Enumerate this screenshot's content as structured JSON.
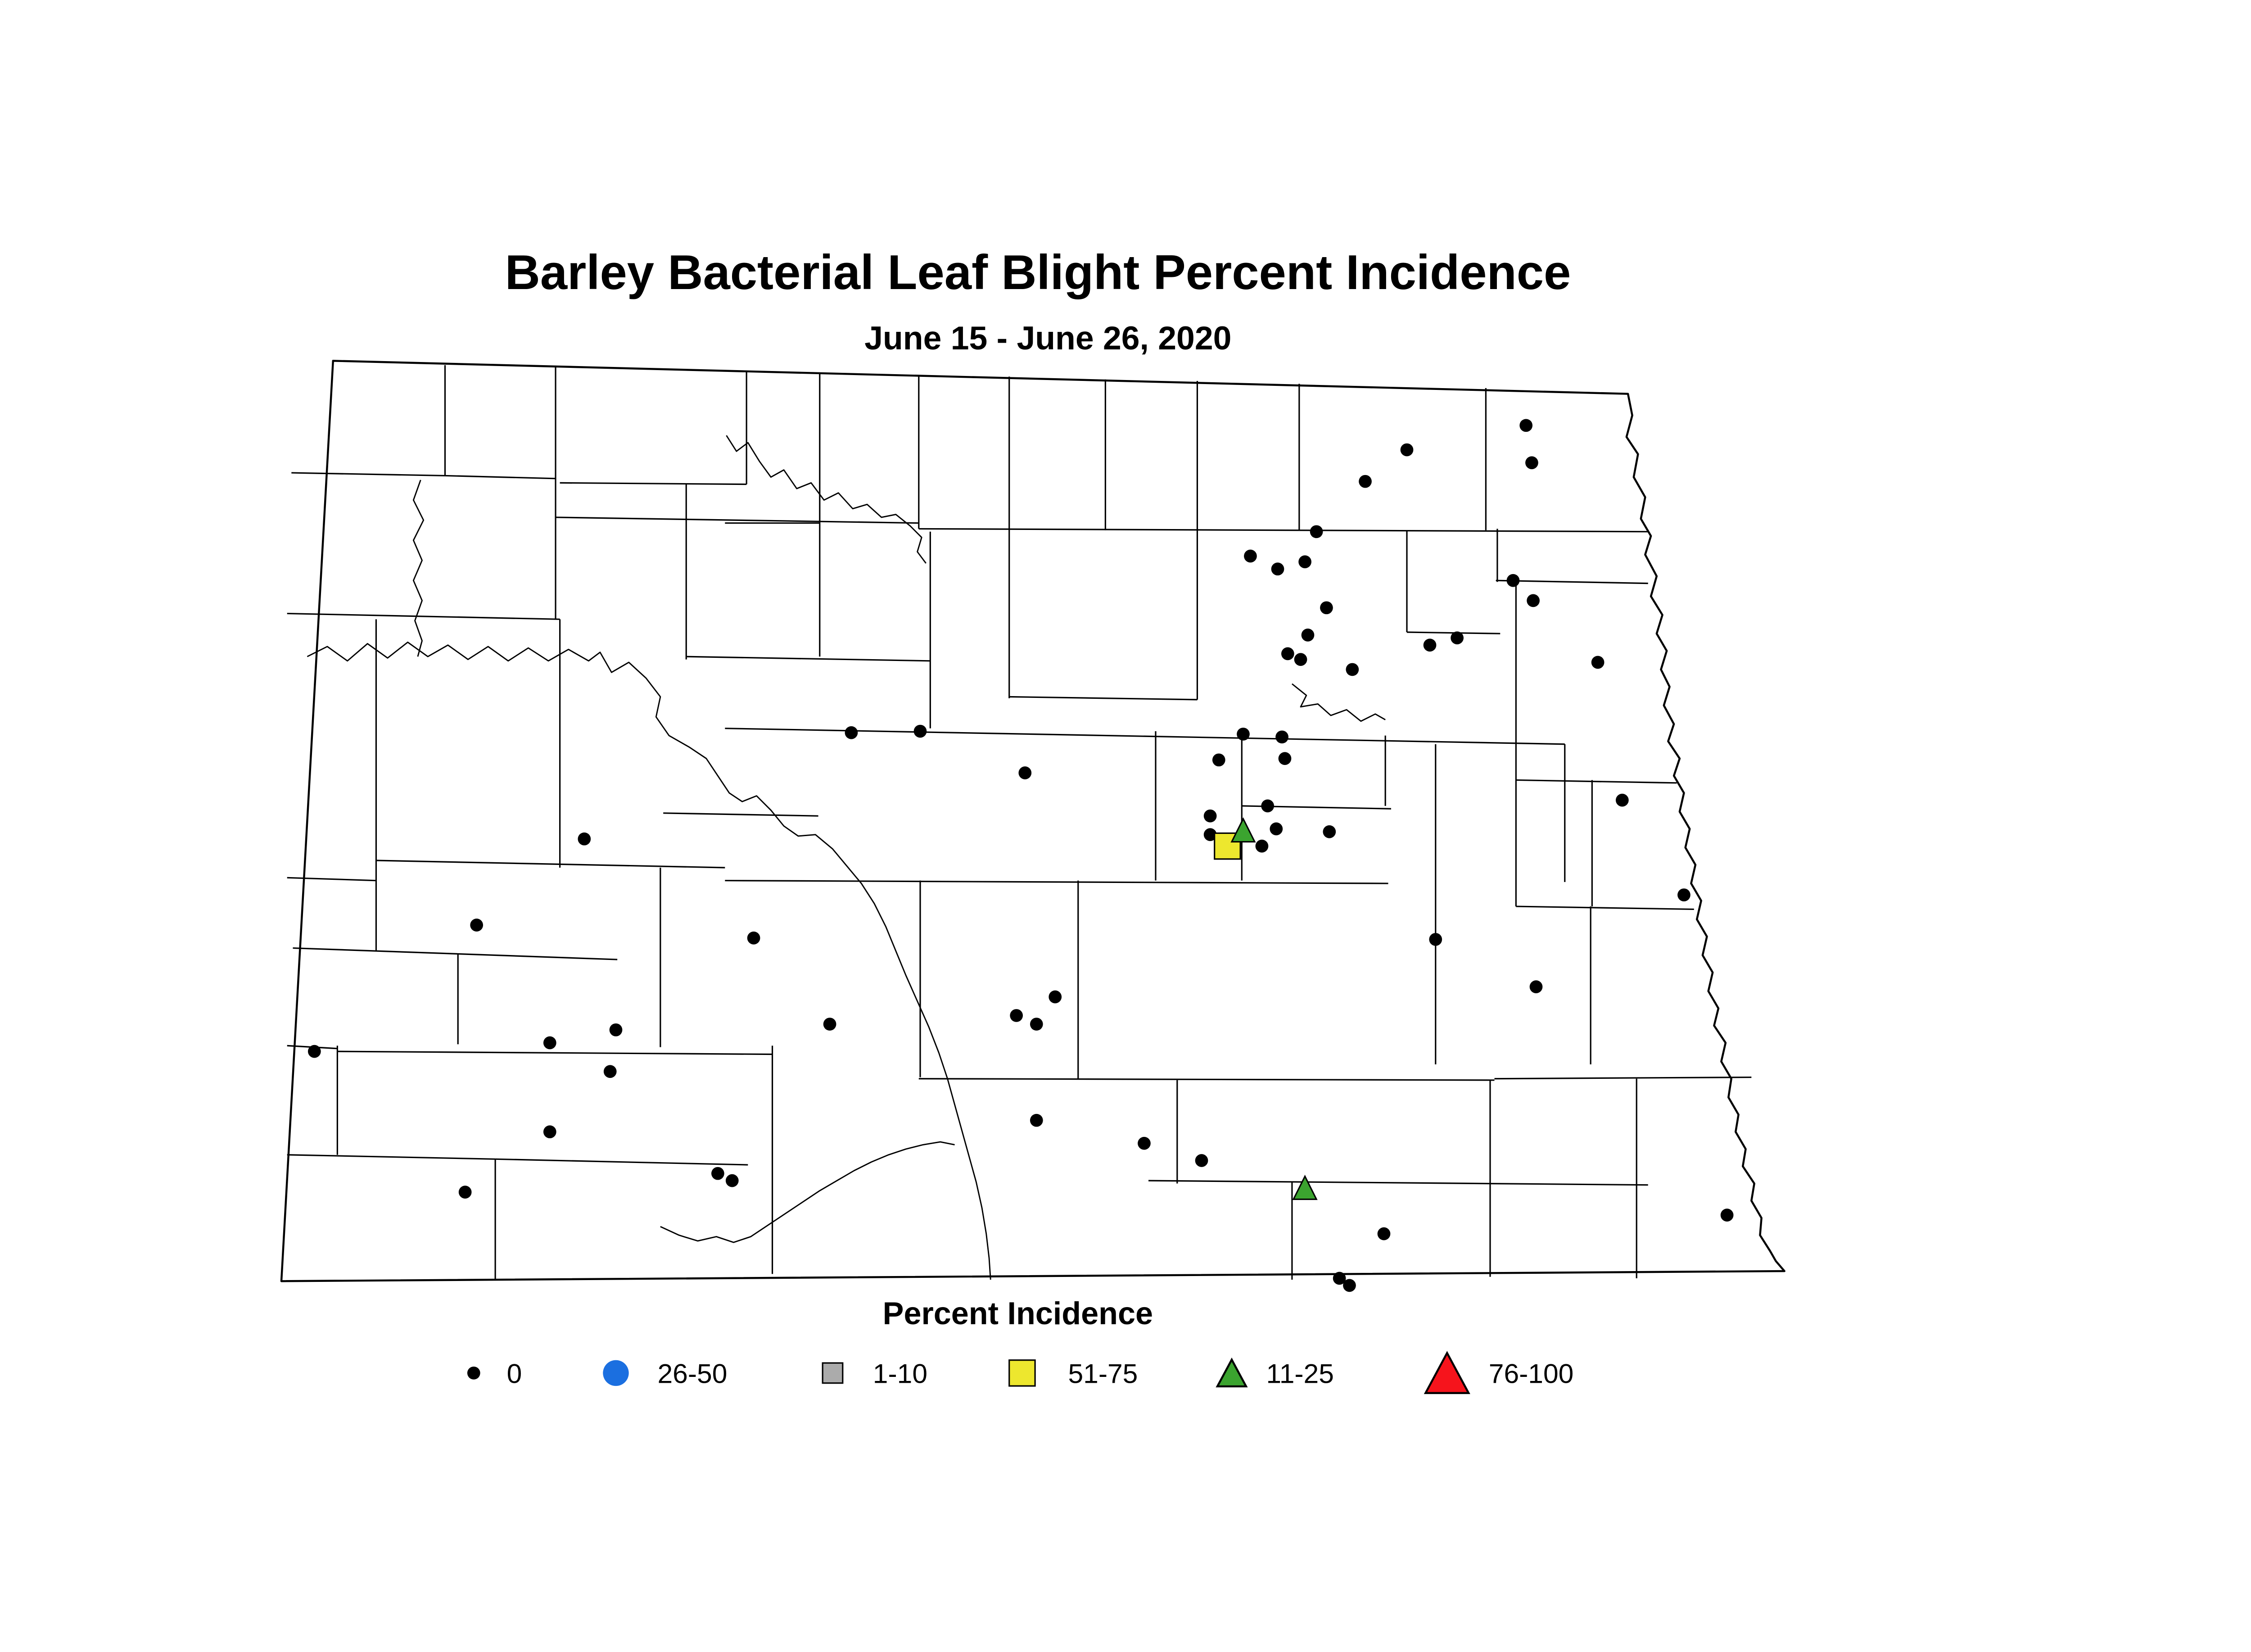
{
  "header": {
    "title": "Barley Bacterial Leaf Blight Percent Incidence",
    "subtitle": "June 15 - June 26, 2020"
  },
  "legend": {
    "title": "Percent Incidence",
    "items": [
      {
        "label": "0",
        "shape": "dot",
        "color": "#000000"
      },
      {
        "label": "26-50",
        "shape": "circle",
        "color": "#1B6FE0"
      },
      {
        "label": "1-10",
        "shape": "square",
        "color": "#ABABAB"
      },
      {
        "label": "51-75",
        "shape": "square",
        "color": "#EDE72E"
      },
      {
        "label": "11-25",
        "shape": "triangle",
        "color": "#3BA42F"
      },
      {
        "label": "76-100",
        "shape": "triangle",
        "color": "#F6141C"
      }
    ]
  },
  "chart_data": {
    "type": "scatter",
    "map_region": "North Dakota counties",
    "title": "Barley Bacterial Leaf Blight Percent Incidence",
    "subtitle": "June 15 - June 26, 2020",
    "legend_title": "Percent Incidence",
    "categories": [
      {
        "label": "0",
        "marker": "small black dot",
        "color": "#000000"
      },
      {
        "label": "1-10",
        "marker": "gray square",
        "color": "#ABABAB"
      },
      {
        "label": "11-25",
        "marker": "green triangle",
        "color": "#3BA42F"
      },
      {
        "label": "26-50",
        "marker": "blue circle",
        "color": "#1B6FE0"
      },
      {
        "label": "51-75",
        "marker": "yellow square",
        "color": "#EDE72E"
      },
      {
        "label": "76-100",
        "marker": "red triangle",
        "color": "#F6141C"
      }
    ],
    "points": {
      "incidence_0": [
        [
          917,
          216
        ],
        [
          871,
          233
        ],
        [
          909,
          237
        ],
        [
          890,
          242
        ],
        [
          951,
          181
        ],
        [
          980,
          159
        ],
        [
          1063,
          142
        ],
        [
          1067,
          168
        ],
        [
          1054,
          250
        ],
        [
          1068,
          264
        ],
        [
          1113,
          307
        ],
        [
          924,
          269
        ],
        [
          911,
          288
        ],
        [
          996,
          295
        ],
        [
          1015,
          290
        ],
        [
          897,
          301
        ],
        [
          906,
          305
        ],
        [
          942,
          312
        ],
        [
          593,
          356
        ],
        [
          641,
          355
        ],
        [
          714,
          384
        ],
        [
          866,
          357
        ],
        [
          893,
          359
        ],
        [
          849,
          375
        ],
        [
          895,
          374
        ],
        [
          883,
          407
        ],
        [
          843,
          414
        ],
        [
          843,
          427
        ],
        [
          889,
          423
        ],
        [
          926,
          425
        ],
        [
          879,
          435
        ],
        [
          1130,
          403
        ],
        [
          1173,
          469
        ],
        [
          407,
          430
        ],
        [
          332,
          490
        ],
        [
          525,
          499
        ],
        [
          578,
          559
        ],
        [
          735,
          540
        ],
        [
          708,
          553
        ],
        [
          722,
          559
        ],
        [
          1000,
          500
        ],
        [
          1070,
          533
        ],
        [
          219,
          578
        ],
        [
          383,
          572
        ],
        [
          429,
          563
        ],
        [
          425,
          592
        ],
        [
          383,
          634
        ],
        [
          324,
          676
        ],
        [
          500,
          663
        ],
        [
          510,
          668
        ],
        [
          722,
          626
        ],
        [
          797,
          642
        ],
        [
          837,
          654
        ],
        [
          964,
          705
        ],
        [
          933,
          736
        ],
        [
          940,
          741
        ],
        [
          1203,
          692
        ]
      ],
      "incidence_11_25": [
        [
          866,
          424
        ],
        [
          909,
          673
        ]
      ],
      "incidence_51_75": [
        [
          855,
          435
        ]
      ],
      "incidence_1_10": [],
      "incidence_26_50": [],
      "incidence_76_100": []
    }
  }
}
